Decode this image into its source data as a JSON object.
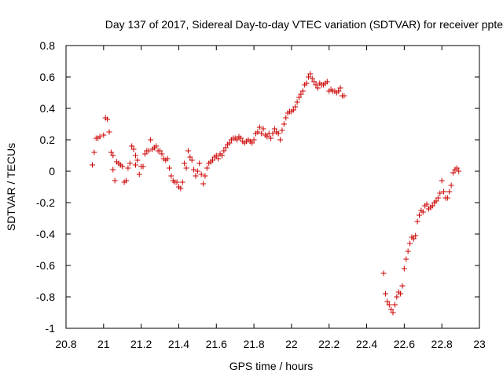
{
  "chart_data": {
    "type": "scatter",
    "title": "Day 137 of 2017, Sidereal Day-to-day VTEC variation (SDTVAR) for receiver ppte",
    "xlabel": "GPS time / hours",
    "ylabel": "SDTVAR / TECUs",
    "xlim": [
      20.8,
      23.0
    ],
    "ylim": [
      -1.0,
      0.8
    ],
    "x_ticks": [
      "20.8",
      "21",
      "21.2",
      "21.4",
      "21.6",
      "21.8",
      "22",
      "22.2",
      "22.4",
      "22.6",
      "22.8",
      "23"
    ],
    "y_ticks": [
      "0.8",
      "0.6",
      "0.4",
      "0.2",
      "0",
      "-0.2",
      "-0.4",
      "-0.6",
      "-0.8",
      "-1"
    ],
    "marker": "+",
    "color": "#cc0000",
    "grid": false,
    "series": [
      {
        "name": "SDTVAR",
        "points": [
          [
            20.94,
            0.04
          ],
          [
            20.95,
            0.12
          ],
          [
            20.96,
            0.21
          ],
          [
            20.97,
            0.21
          ],
          [
            20.98,
            0.22
          ],
          [
            21.0,
            0.23
          ],
          [
            21.01,
            0.34
          ],
          [
            21.02,
            0.33
          ],
          [
            21.03,
            0.25
          ],
          [
            21.04,
            0.12
          ],
          [
            21.05,
            0.1
          ],
          [
            21.05,
            0.01
          ],
          [
            21.06,
            -0.06
          ],
          [
            21.07,
            0.06
          ],
          [
            21.08,
            0.05
          ],
          [
            21.09,
            0.04
          ],
          [
            21.1,
            0.03
          ],
          [
            21.11,
            -0.07
          ],
          [
            21.12,
            -0.06
          ],
          [
            21.13,
            0.02
          ],
          [
            21.14,
            0.05
          ],
          [
            21.15,
            0.16
          ],
          [
            21.16,
            0.14
          ],
          [
            21.17,
            0.1
          ],
          [
            21.17,
            0.04
          ],
          [
            21.18,
            0.07
          ],
          [
            21.19,
            -0.02
          ],
          [
            21.2,
            0.03
          ],
          [
            21.21,
            0.03
          ],
          [
            21.22,
            0.11
          ],
          [
            21.23,
            0.13
          ],
          [
            21.24,
            0.13
          ],
          [
            21.25,
            0.2
          ],
          [
            21.26,
            0.14
          ],
          [
            21.27,
            0.15
          ],
          [
            21.28,
            0.16
          ],
          [
            21.29,
            0.13
          ],
          [
            21.3,
            0.13
          ],
          [
            21.31,
            0.11
          ],
          [
            21.32,
            0.08
          ],
          [
            21.33,
            0.07
          ],
          [
            21.34,
            0.08
          ],
          [
            21.35,
            0.02
          ],
          [
            21.36,
            -0.03
          ],
          [
            21.37,
            -0.06
          ],
          [
            21.38,
            -0.07
          ],
          [
            21.39,
            -0.07
          ],
          [
            21.4,
            -0.1
          ],
          [
            21.41,
            -0.11
          ],
          [
            21.42,
            -0.07
          ],
          [
            21.43,
            0.05
          ],
          [
            21.44,
            0.02
          ],
          [
            21.45,
            0.13
          ],
          [
            21.46,
            0.09
          ],
          [
            21.47,
            0.07
          ],
          [
            21.48,
            0.01
          ],
          [
            21.49,
            -0.03
          ],
          [
            21.5,
            0.0
          ],
          [
            21.51,
            0.05
          ],
          [
            21.52,
            -0.02
          ],
          [
            21.53,
            -0.08
          ],
          [
            21.54,
            -0.03
          ],
          [
            21.55,
            0.02
          ],
          [
            21.56,
            0.05
          ],
          [
            21.57,
            0.06
          ],
          [
            21.58,
            0.07
          ],
          [
            21.59,
            0.09
          ],
          [
            21.6,
            0.1
          ],
          [
            21.61,
            0.08
          ],
          [
            21.62,
            0.11
          ],
          [
            21.63,
            0.1
          ],
          [
            21.64,
            0.13
          ],
          [
            21.65,
            0.15
          ],
          [
            21.66,
            0.17
          ],
          [
            21.67,
            0.18
          ],
          [
            21.68,
            0.2
          ],
          [
            21.69,
            0.21
          ],
          [
            21.7,
            0.21
          ],
          [
            21.71,
            0.2
          ],
          [
            21.72,
            0.22
          ],
          [
            21.73,
            0.21
          ],
          [
            21.74,
            0.19
          ],
          [
            21.75,
            0.18
          ],
          [
            21.76,
            0.19
          ],
          [
            21.77,
            0.2
          ],
          [
            21.78,
            0.19
          ],
          [
            21.79,
            0.18
          ],
          [
            21.8,
            0.2
          ],
          [
            21.81,
            0.24
          ],
          [
            21.82,
            0.25
          ],
          [
            21.83,
            0.28
          ],
          [
            21.84,
            0.24
          ],
          [
            21.85,
            0.27
          ],
          [
            21.86,
            0.23
          ],
          [
            21.87,
            0.22
          ],
          [
            21.88,
            0.24
          ],
          [
            21.89,
            0.21
          ],
          [
            21.9,
            0.24
          ],
          [
            21.91,
            0.27
          ],
          [
            21.92,
            0.25
          ],
          [
            21.93,
            0.24
          ],
          [
            21.94,
            0.2
          ],
          [
            21.95,
            0.26
          ],
          [
            21.96,
            0.3
          ],
          [
            21.97,
            0.34
          ],
          [
            21.98,
            0.37
          ],
          [
            21.99,
            0.38
          ],
          [
            22.0,
            0.38
          ],
          [
            22.01,
            0.39
          ],
          [
            22.02,
            0.41
          ],
          [
            22.03,
            0.44
          ],
          [
            22.04,
            0.47
          ],
          [
            22.05,
            0.49
          ],
          [
            22.06,
            0.51
          ],
          [
            22.07,
            0.55
          ],
          [
            22.08,
            0.56
          ],
          [
            22.09,
            0.6
          ],
          [
            22.1,
            0.62
          ],
          [
            22.11,
            0.59
          ],
          [
            22.12,
            0.57
          ],
          [
            22.13,
            0.55
          ],
          [
            22.14,
            0.53
          ],
          [
            22.15,
            0.56
          ],
          [
            22.16,
            0.55
          ],
          [
            22.17,
            0.55
          ],
          [
            22.18,
            0.56
          ],
          [
            22.19,
            0.57
          ],
          [
            22.2,
            0.51
          ],
          [
            22.21,
            0.52
          ],
          [
            22.22,
            0.51
          ],
          [
            22.23,
            0.51
          ],
          [
            22.24,
            0.5
          ],
          [
            22.25,
            0.51
          ],
          [
            22.26,
            0.53
          ],
          [
            22.27,
            0.48
          ],
          [
            22.28,
            0.48
          ],
          [
            22.49,
            -0.65
          ],
          [
            22.5,
            -0.78
          ],
          [
            22.51,
            -0.83
          ],
          [
            22.52,
            -0.85
          ],
          [
            22.53,
            -0.88
          ],
          [
            22.54,
            -0.9
          ],
          [
            22.55,
            -0.85
          ],
          [
            22.56,
            -0.8
          ],
          [
            22.57,
            -0.77
          ],
          [
            22.58,
            -0.78
          ],
          [
            22.59,
            -0.73
          ],
          [
            22.6,
            -0.62
          ],
          [
            22.61,
            -0.56
          ],
          [
            22.62,
            -0.51
          ],
          [
            22.63,
            -0.46
          ],
          [
            22.64,
            -0.42
          ],
          [
            22.65,
            -0.43
          ],
          [
            22.66,
            -0.41
          ],
          [
            22.67,
            -0.32
          ],
          [
            22.68,
            -0.28
          ],
          [
            22.69,
            -0.25
          ],
          [
            22.7,
            -0.26
          ],
          [
            22.71,
            -0.22
          ],
          [
            22.72,
            -0.21
          ],
          [
            22.73,
            -0.24
          ],
          [
            22.74,
            -0.23
          ],
          [
            22.75,
            -0.22
          ],
          [
            22.76,
            -0.2
          ],
          [
            22.77,
            -0.19
          ],
          [
            22.78,
            -0.17
          ],
          [
            22.79,
            -0.14
          ],
          [
            22.8,
            -0.06
          ],
          [
            22.81,
            -0.13
          ],
          [
            22.82,
            -0.17
          ],
          [
            22.83,
            -0.17
          ],
          [
            22.84,
            -0.13
          ],
          [
            22.85,
            -0.09
          ],
          [
            22.86,
            -0.01
          ],
          [
            22.87,
            0.01
          ],
          [
            22.88,
            0.02
          ],
          [
            22.89,
            0.0
          ]
        ]
      }
    ]
  }
}
